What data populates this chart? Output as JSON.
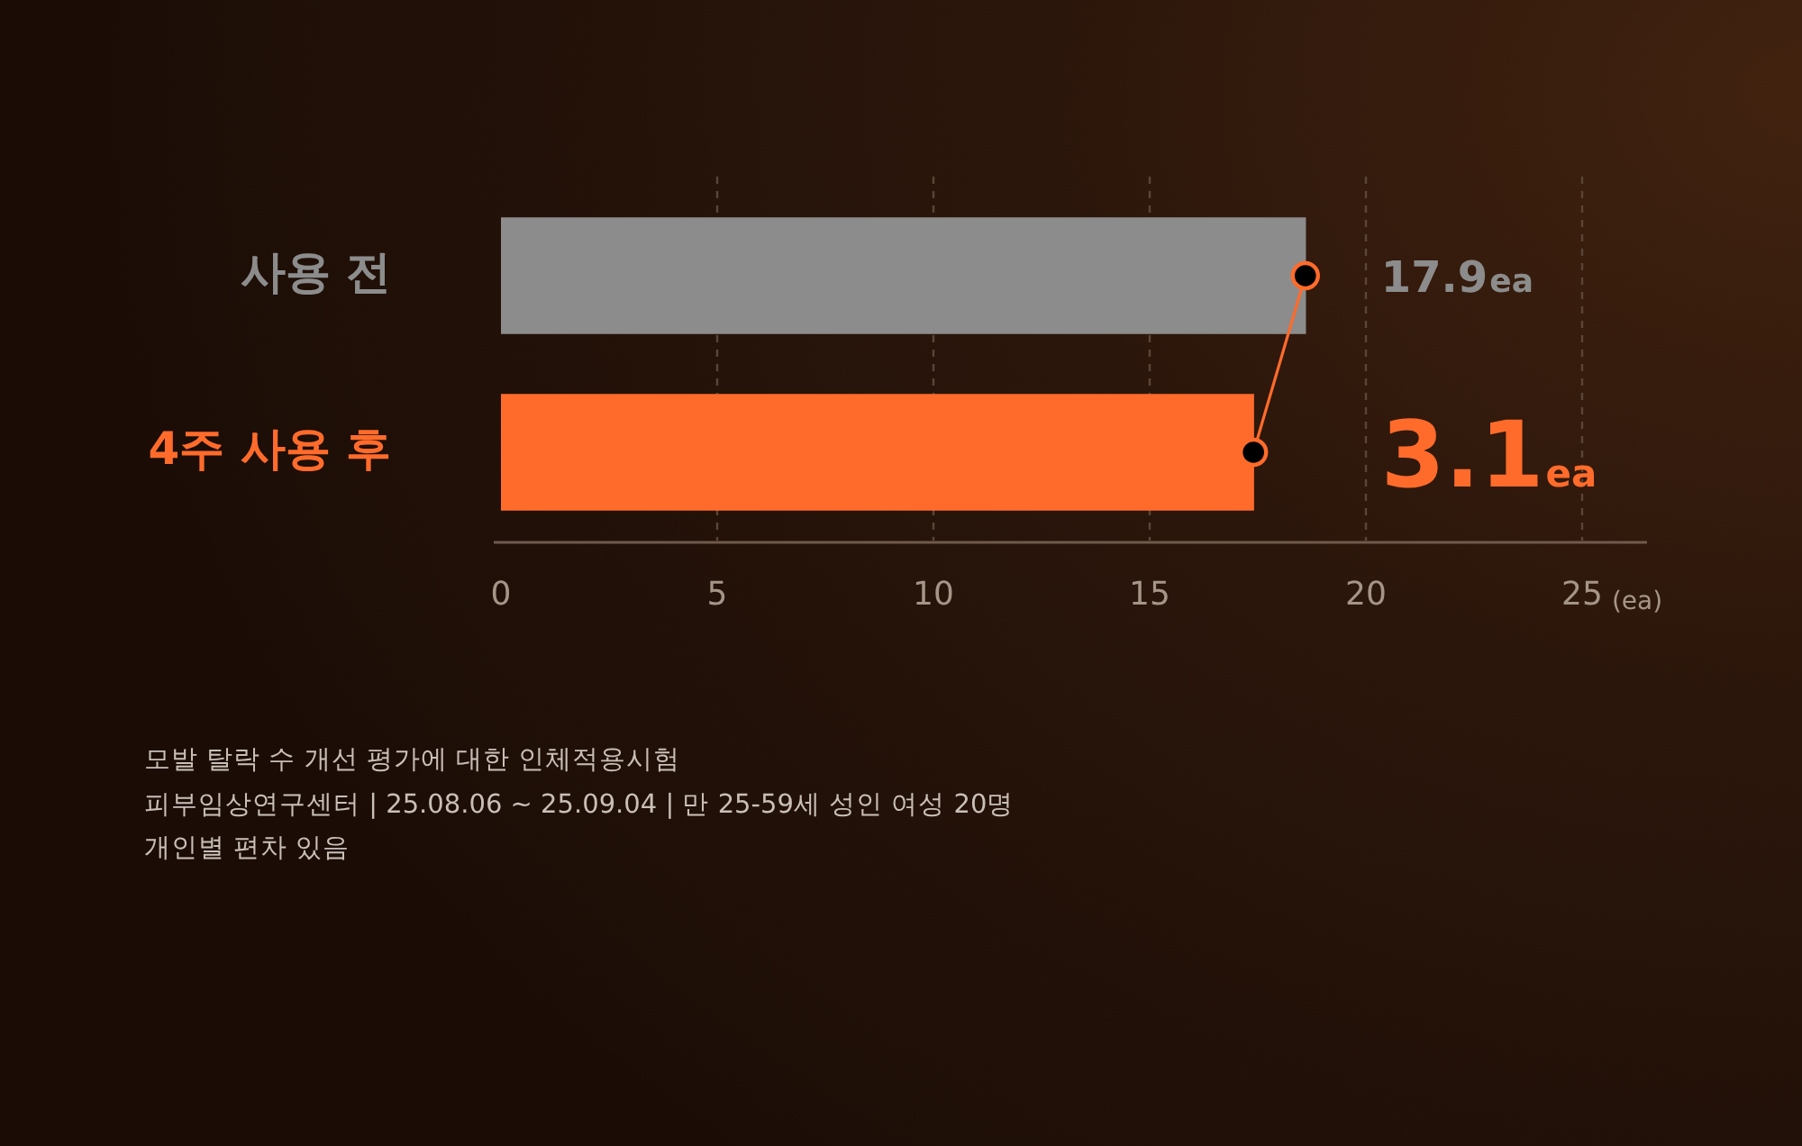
{
  "chart_data": {
    "type": "bar",
    "orientation": "horizontal",
    "categories": [
      "사용 전",
      "4주 사용 후"
    ],
    "series": [
      {
        "colors": [
          "#8c8c8c",
          "#ff6b2b"
        ],
        "values": [
          18.6,
          17.4
        ]
      },
      {
        "type": "line",
        "color": "#ff6b2b",
        "values": [
          18.6,
          17.4
        ]
      }
    ],
    "marker": "circle",
    "xlim": [
      0,
      26.5
    ],
    "xticks": [
      0,
      5,
      10,
      15,
      20,
      25
    ],
    "xlabel": "(ea)",
    "grid": "x",
    "annotations": [
      {
        "text": "17.9ea",
        "x": 18.6,
        "y": "사용 전"
      },
      {
        "text": "3.1ea",
        "x": 17.4,
        "y": "4주 사용 후"
      },
      "모발 탈락 수 개선 평가에 대한 인체적용시험",
      "피부임상연구센터 | 25.08.06 ~ 25.09.04 | 만 25-59세 성인 여성 20명",
      "개인별 편차 있음"
    ]
  }
}
